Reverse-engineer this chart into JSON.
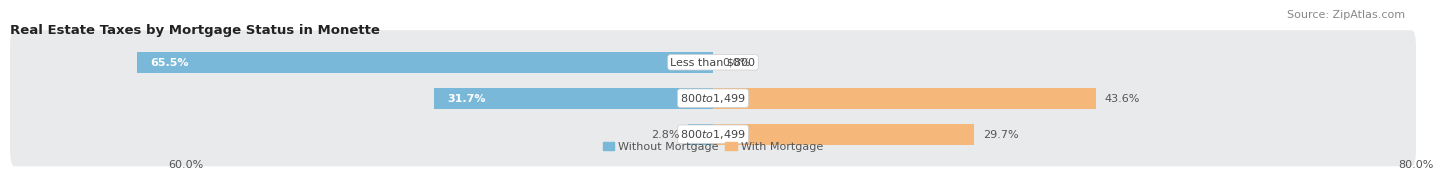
{
  "title": "Real Estate Taxes by Mortgage Status in Monette",
  "source": "Source: ZipAtlas.com",
  "rows": [
    {
      "label": "Less than $800",
      "without_mortgage": 65.5,
      "with_mortgage": 0.0
    },
    {
      "label": "$800 to $1,499",
      "without_mortgage": 31.7,
      "with_mortgage": 43.6
    },
    {
      "label": "$800 to $1,499",
      "without_mortgage": 2.8,
      "with_mortgage": 29.7
    }
  ],
  "xlim_left": -80.0,
  "xlim_right": 80.0,
  "xtick_left_label": "60.0%",
  "xtick_right_label": "80.0%",
  "xtick_left_val": -60.0,
  "xtick_right_val": 80.0,
  "color_without": "#7ab8d9",
  "color_with": "#f5b87a",
  "color_row_bg": "#e8eaec",
  "bar_height": 0.58,
  "legend_without": "Without Mortgage",
  "legend_with": "With Mortgage",
  "title_fontsize": 9.5,
  "source_fontsize": 8,
  "label_fontsize": 8,
  "pct_fontsize": 8,
  "axis_fontsize": 8,
  "label_bg_color": "#f0f0f2",
  "label_text_color": "#444444",
  "pct_inside_color": "white",
  "pct_outside_color": "#555555"
}
